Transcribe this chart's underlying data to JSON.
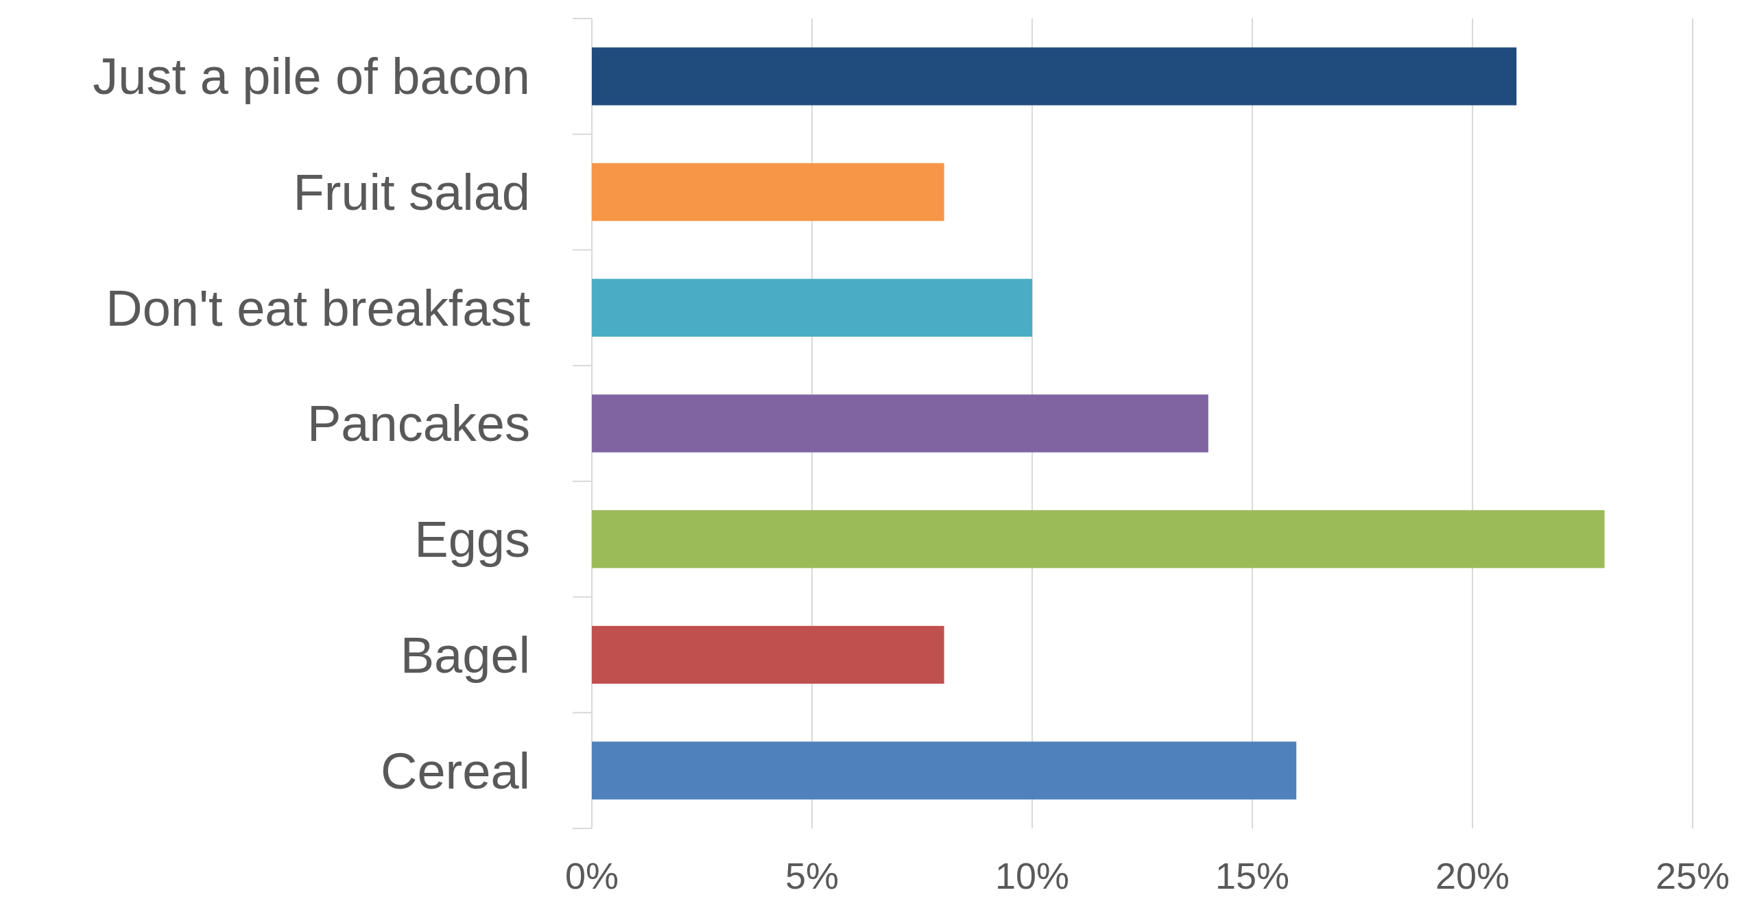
{
  "chart_data": {
    "type": "bar",
    "orientation": "horizontal",
    "categories": [
      "Just a pile of bacon",
      "Fruit salad",
      "Don't eat breakfast",
      "Pancakes",
      "Eggs",
      "Bagel",
      "Cereal"
    ],
    "values": [
      21,
      8,
      10,
      14,
      23,
      8,
      16
    ],
    "colors": [
      "#1f4b7d",
      "#f79646",
      "#4bacc6",
      "#8064a2",
      "#9bbb59",
      "#c0504d",
      "#4f81bd"
    ],
    "xlim": [
      0,
      25
    ],
    "xticks": [
      {
        "value": 0,
        "label": "0%"
      },
      {
        "value": 5,
        "label": "5%"
      },
      {
        "value": 10,
        "label": "10%"
      },
      {
        "value": 15,
        "label": "15%"
      },
      {
        "value": 20,
        "label": "20%"
      },
      {
        "value": 25,
        "label": "25%"
      }
    ],
    "grid": "x"
  }
}
